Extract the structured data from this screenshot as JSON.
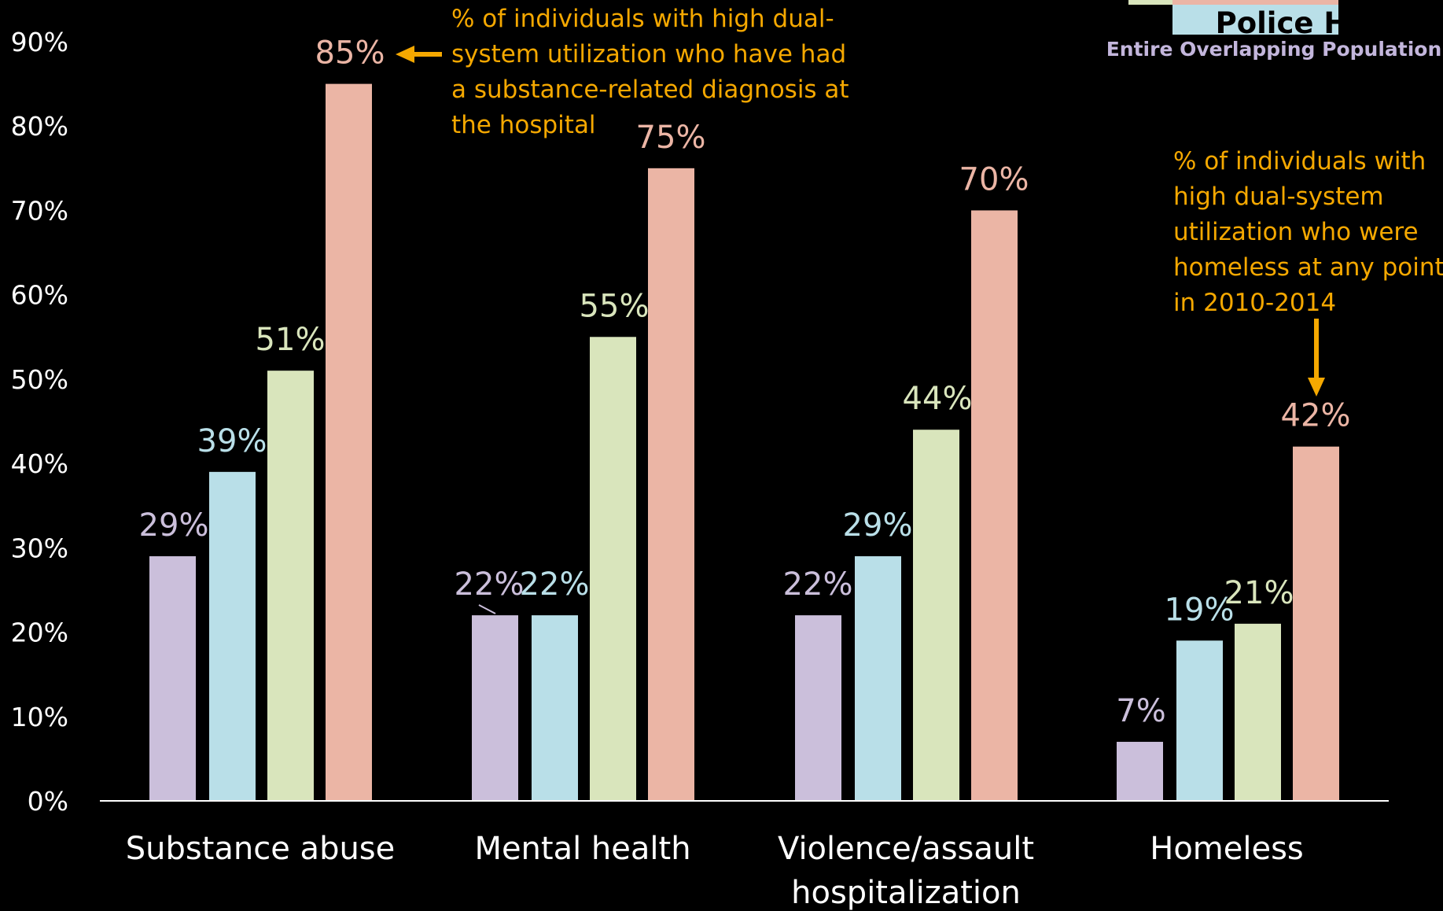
{
  "chart_data": {
    "type": "bar",
    "categories": [
      "Substance abuse",
      "Mental health",
      "Violence/assault hospitalization",
      "Homeless"
    ],
    "category_lines": [
      [
        "Substance abuse"
      ],
      [
        "Mental health"
      ],
      [
        "Violence/assault",
        "hospitalization"
      ],
      [
        "Homeless"
      ]
    ],
    "series": [
      {
        "name": "Entire Overlapping Population",
        "color": "#cbbfdb",
        "values": [
          29,
          22,
          22,
          7
        ],
        "labels": [
          "29%",
          "22%",
          "22%",
          "7%"
        ]
      },
      {
        "name": "Police HU",
        "color": "#b9dfe8",
        "values": [
          39,
          22,
          29,
          19
        ],
        "labels": [
          "39%",
          "22%",
          "29%",
          "19%"
        ]
      },
      {
        "color": "#d9e5bc",
        "values": [
          51,
          55,
          44,
          21
        ],
        "labels": [
          "51%",
          "55%",
          "44%",
          "21%"
        ]
      },
      {
        "color": "#ebb5a5",
        "values": [
          85,
          75,
          70,
          42
        ],
        "labels": [
          "85%",
          "75%",
          "70%",
          "42%"
        ]
      }
    ],
    "yticks": [
      "0%",
      "10%",
      "20%",
      "30%",
      "40%",
      "50%",
      "60%",
      "70%",
      "80%",
      "90%"
    ],
    "ylim": [
      0,
      100
    ],
    "grid": false,
    "legend_position": "top-right",
    "annotations": [
      {
        "lines": [
          "% of individuals with high dual-",
          "system utilization who have had",
          "a substance-related diagnosis at",
          "the hospital"
        ],
        "points_to": "Substance abuse 85%"
      },
      {
        "lines": [
          "% of individuals with",
          "high dual-system",
          "utilization who were",
          "homeless at any point",
          "in 2010-2014"
        ],
        "points_to": "Homeless 42%"
      }
    ]
  },
  "legend": {
    "police_label": "Police HU",
    "entire_label": "Entire Overlapping Population"
  },
  "colors": {
    "background": "#000000",
    "axis": "#ffffff",
    "annotation": "#f5a800"
  }
}
